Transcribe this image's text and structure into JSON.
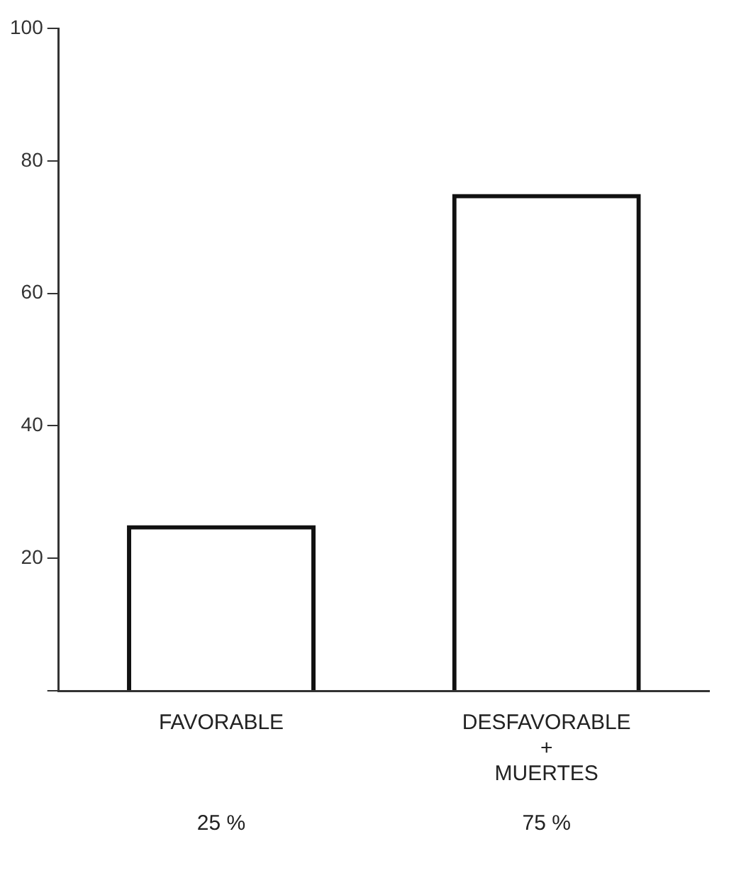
{
  "chart_data": {
    "type": "bar",
    "categories": [
      "FAVORABLE",
      "DESFAVORABLE + MUERTES"
    ],
    "values": [
      25,
      75
    ],
    "color": "#111111",
    "value_labels": [
      "25 %",
      "75 %"
    ],
    "ylim": [
      0,
      100
    ],
    "yticks": [
      {
        "value": 0,
        "label": null
      },
      20,
      40,
      60,
      80,
      100
    ],
    "grid": false,
    "legend": false
  }
}
